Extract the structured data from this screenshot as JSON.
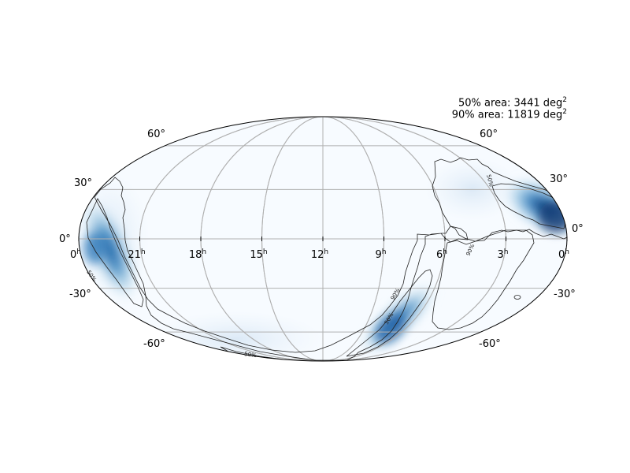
{
  "colors": {
    "background": "#f7fbff",
    "probability_high": "#08519c",
    "probability_mid": "#6baed6",
    "grid": "#b0b0b0",
    "contour": "#222222",
    "border": "#000000"
  },
  "colormap": "Blues",
  "legend": {
    "area50_prefix": "50% area: 3441 deg",
    "area90_prefix": "90% area: 11819 deg",
    "unit_sup": "2"
  },
  "latitude_labels": [
    "60°",
    "30°",
    "0°",
    "-30°",
    "-60°"
  ],
  "ra_labels": [
    {
      "h": "0",
      "s": "h"
    },
    {
      "h": "21",
      "s": "h"
    },
    {
      "h": "18",
      "s": "h"
    },
    {
      "h": "15",
      "s": "h"
    },
    {
      "h": "12",
      "s": "h"
    },
    {
      "h": "9",
      "s": "h"
    },
    {
      "h": "6",
      "s": "h"
    },
    {
      "h": "3",
      "s": "h"
    },
    {
      "h": "0",
      "s": "h"
    }
  ],
  "contour_labels": [
    "50%",
    "90%"
  ]
}
